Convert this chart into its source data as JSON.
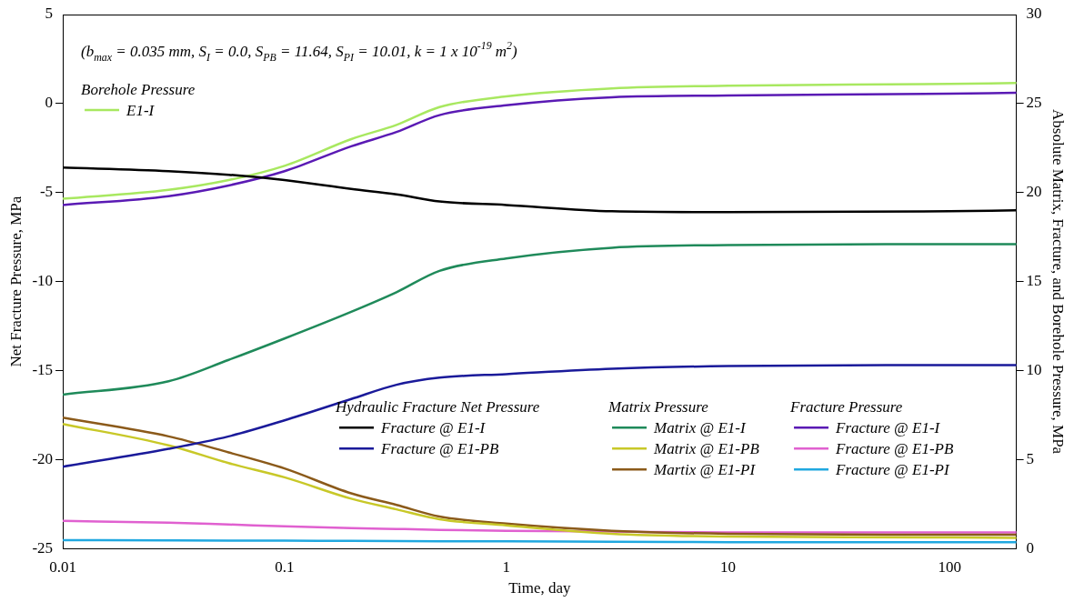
{
  "chart_data": {
    "type": "line",
    "xlabel": "Time, day",
    "ylabel": "Net Fracture Pressure, MPa",
    "y2label": "Absolute Matrix, Fracture, and Borehole Pressure, MPa",
    "log": "x",
    "xlim": [
      0.01,
      200
    ],
    "xticks": [
      0.01,
      0.1,
      1,
      10,
      100
    ],
    "ylim": [
      -25,
      5
    ],
    "yticks": [
      -25,
      -20,
      -15,
      -10,
      -5,
      0,
      5
    ],
    "y2lim": [
      0,
      30
    ],
    "y2ticks": [
      0,
      5,
      10,
      15,
      20,
      25,
      30
    ],
    "grid": false,
    "legend": "bottom right",
    "marker": "none",
    "line_style": "solid",
    "annotations": [
      "(b$_{max}$ = 0.035 mm, S$_{I}$ = 0.0, S$_{PB}$ = 11.64, S$_{PI}$ = 10.01, k = 1 x 10$^{-19}$ m$^{2}$)",
      "Borehole Pressure",
      "Hydraulic Fracture Net Pressure",
      "Matrix Pressure",
      "Fracture Pressure"
    ],
    "x": [
      0.01,
      0.03,
      0.056,
      0.1,
      0.2,
      0.32,
      0.5,
      1,
      3,
      10,
      100,
      200
    ],
    "series": [
      {
        "name": "Fracture @ E1-I",
        "color": "#000000",
        "values": [
          -3.6,
          -3.8,
          -4.0,
          -4.3,
          -4.8,
          -5.1,
          -5.5,
          -5.7,
          -6.05,
          -6.1,
          -6.05,
          -6.0
        ]
      },
      {
        "name": "Fracture @ E1-PB",
        "color": "#1a1a9a",
        "values": [
          -20.4,
          -19.4,
          -18.7,
          -17.8,
          -16.6,
          -15.8,
          -15.4,
          -15.2,
          -14.9,
          -14.75,
          -14.7,
          -14.7
        ]
      },
      {
        "name": "Matrix @ E1-I",
        "color": "#1f8a5a",
        "values": [
          8.65,
          9.4,
          10.6,
          11.8,
          13.3,
          14.4,
          15.6,
          16.3,
          16.9,
          17.05,
          17.1,
          17.1
        ],
        "axis": "y2"
      },
      {
        "name": "Matrix @ E1-PB",
        "color": "#c8c828",
        "values": [
          7.0,
          5.8,
          4.8,
          4.0,
          2.8,
          2.2,
          1.65,
          1.3,
          0.83,
          0.67,
          0.62,
          0.6
        ],
        "axis": "y2"
      },
      {
        "name": "Martix @ E1-PI",
        "color": "#8b5a1a",
        "values": [
          7.35,
          6.3,
          5.4,
          4.5,
          3.1,
          2.45,
          1.8,
          1.4,
          1.0,
          0.83,
          0.78,
          0.78
        ],
        "axis": "y2"
      },
      {
        "name": "Fracture @ E1-I",
        "color": "#5a1ab4",
        "values": [
          19.3,
          19.8,
          20.4,
          21.2,
          22.6,
          23.4,
          24.35,
          24.9,
          25.35,
          25.45,
          25.55,
          25.6
        ],
        "axis": "y2"
      },
      {
        "name": "Fracture @ E1-PB",
        "color": "#e060d0",
        "values": [
          1.55,
          1.45,
          1.35,
          1.25,
          1.15,
          1.1,
          1.05,
          1.0,
          0.95,
          0.9,
          0.9,
          0.9
        ],
        "axis": "y2"
      },
      {
        "name": "Fracture @ E1-PI",
        "color": "#20a8e0",
        "values": [
          0.47,
          0.46,
          0.45,
          0.44,
          0.43,
          0.42,
          0.41,
          0.4,
          0.38,
          0.36,
          0.35,
          0.35
        ],
        "axis": "y2"
      },
      {
        "name": "E1-I",
        "color": "#a8e860",
        "values": [
          19.65,
          20.15,
          20.7,
          21.5,
          23.0,
          23.8,
          24.8,
          25.4,
          25.85,
          26.0,
          26.1,
          26.15
        ],
        "axis": "y2"
      }
    ]
  }
}
